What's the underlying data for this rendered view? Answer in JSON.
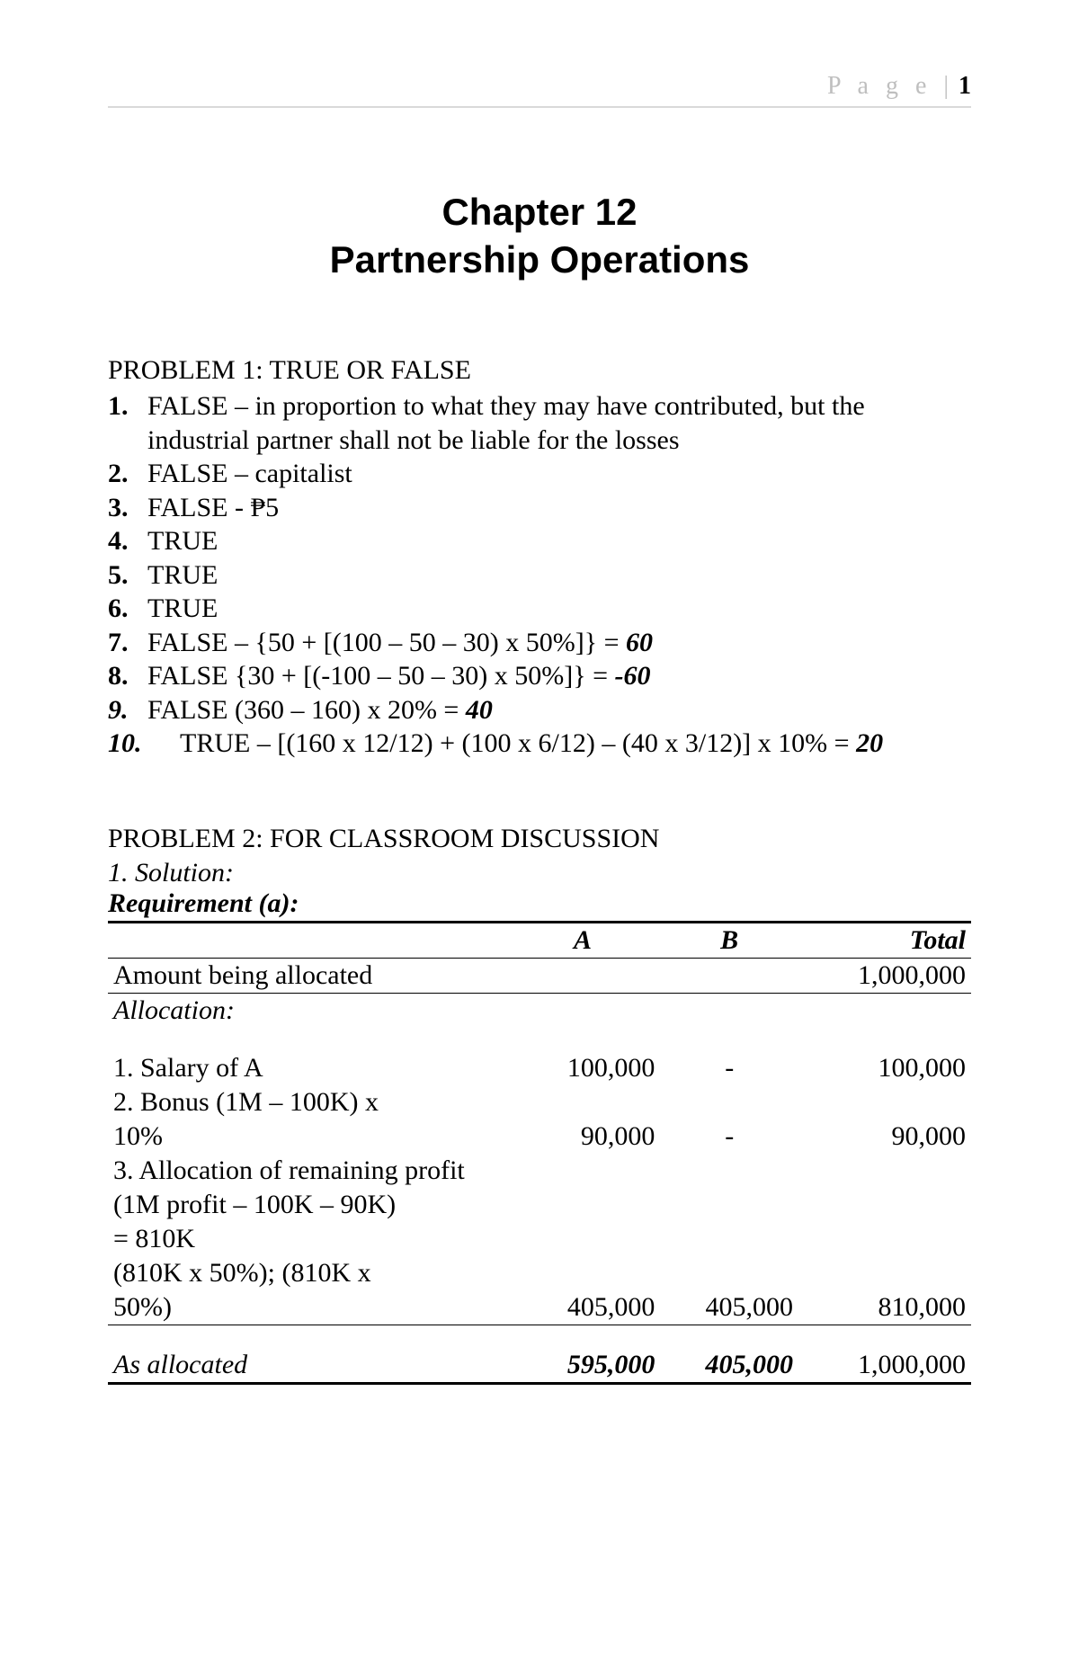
{
  "header": {
    "page_word": "P a g e",
    "separator": "|",
    "page_number": "1"
  },
  "chapter": {
    "line1": "Chapter 12",
    "line2": "Partnership Operations"
  },
  "problem1": {
    "title": "PROBLEM 1: TRUE OR FALSE",
    "items": [
      {
        "n": "1.",
        "text": "FALSE – in proportion to what they may have contributed, but the industrial partner shall not be liable for the losses"
      },
      {
        "n": "2.",
        "text": "FALSE – capitalist"
      },
      {
        "n": "3.",
        "text": "FALSE - ₱5"
      },
      {
        "n": "4.",
        "text": "TRUE"
      },
      {
        "n": "5.",
        "text": "TRUE"
      },
      {
        "n": "6.",
        "text": "TRUE"
      },
      {
        "n": "7.",
        "text_pre": "FALSE – {50 + [(100 – 50 – 30) x 50%]} = ",
        "ans": "60"
      },
      {
        "n": "8.",
        "text_pre": "FALSE {30 + [(-100 – 50 – 30) x 50%]} = ",
        "ans": "-60"
      },
      {
        "n": "9.",
        "n_italic": true,
        "text_pre": "FALSE (360 – 160) x 20% = ",
        "ans": "40"
      },
      {
        "n": "10.",
        "n_italic": true,
        "indent": true,
        "text_pre": "TRUE – [(160 x 12/12) + (100 x 6/12) – (40 x 3/12)] x 10% = ",
        "ans": "20"
      }
    ]
  },
  "problem2": {
    "title": "PROBLEM 2: FOR CLASSROOM DISCUSSION",
    "solution_label": "1.  Solution:",
    "requirement_label": "Requirement (a):",
    "headers": {
      "a": "A",
      "b": "B",
      "total": "Total"
    },
    "rows": {
      "amount_label": "Amount being allocated",
      "amount_total": "1,000,000",
      "allocation_label": "Allocation:",
      "r1_label": " 1. Salary of A",
      "r1_a": "100,000",
      "r1_b": "-",
      "r1_t": "100,000",
      "r2_label_a": " 2. Bonus (1M – 100K) x",
      "r2_label_b": "10%",
      "r2_a": "90,000",
      "r2_b": "-",
      "r2_t": "90,000",
      "r3_label": " 3. Allocation of remaining profit",
      "r3_sub1": "   (1M profit – 100K – 90K)",
      "r3_sub2": "= 810K",
      "r3_sub3a": "   (810K x 50%); (810K x",
      "r3_sub3b": "50%)",
      "r3_a": "405,000",
      "r3_b": "405,000",
      "r3_t": "810,000",
      "asalloc_label": "As allocated",
      "asalloc_a": "595,000",
      "asalloc_b": "405,000",
      "asalloc_t": "1,000,000"
    }
  }
}
